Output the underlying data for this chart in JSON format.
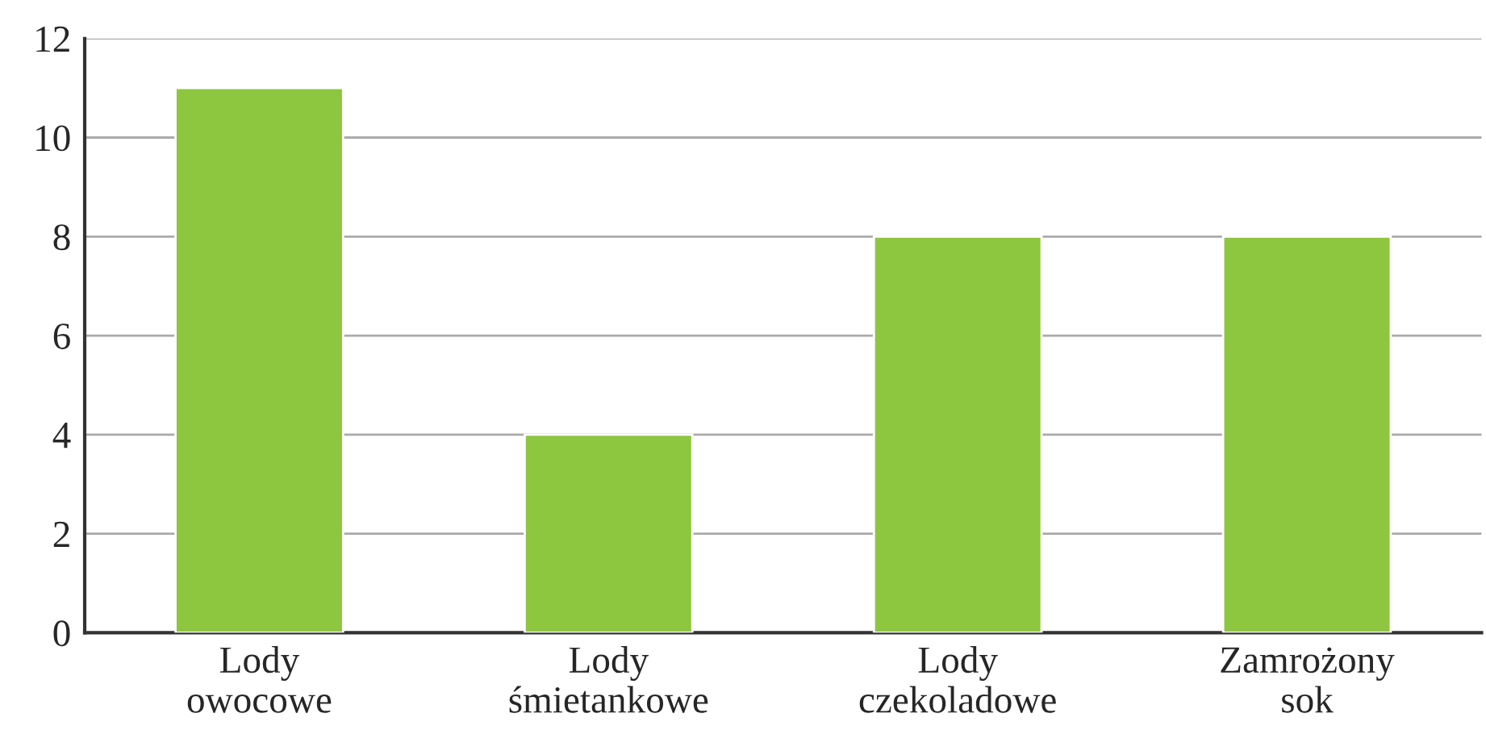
{
  "chart_data": {
    "type": "bar",
    "categories": [
      "Lody\nowocowe",
      "Lody\nśmietankowe",
      "Lody\nczekoladowe",
      "Zamrożony\nsok"
    ],
    "values": [
      11,
      4,
      8,
      8
    ],
    "color": "#8dc63f",
    "ylim": [
      0,
      12
    ],
    "yticks": [
      0,
      2,
      4,
      6,
      8,
      10,
      12
    ],
    "grid": "y"
  }
}
